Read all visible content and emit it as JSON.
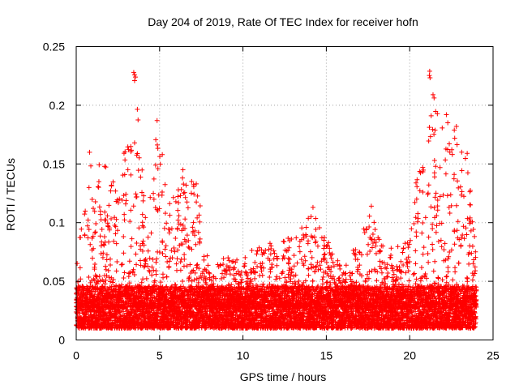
{
  "chart_data": {
    "type": "scatter",
    "title": "Day 204 of 2019, Rate Of TEC Index for receiver hofn",
    "xlabel": "GPS time / hours",
    "ylabel": "ROTI / TECUs",
    "xlim": [
      0,
      25
    ],
    "ylim": [
      0,
      0.25
    ],
    "xticks": [
      0,
      5,
      10,
      15,
      20,
      25
    ],
    "yticks": [
      0,
      0.05,
      0.1,
      0.15,
      0.2,
      0.25
    ],
    "xtick_labels": [
      "0",
      "5",
      "10",
      "15",
      "20",
      "25"
    ],
    "ytick_labels": [
      "0",
      "0.05",
      "0.1",
      "0.15",
      "0.2",
      "0.25"
    ],
    "grid": true,
    "marker": "+",
    "color": "#ff0000",
    "series": [
      {
        "name": "ROTI",
        "x_range": [
          0,
          24
        ],
        "interval_hours": 0.0083,
        "baseline_min": 0.01,
        "baseline_median": 0.028,
        "envelope": [
          {
            "x": 0,
            "y": 0.06
          },
          {
            "x": 0.8,
            "y": 0.16
          },
          {
            "x": 1.7,
            "y": 0.15
          },
          {
            "x": 2.6,
            "y": 0.13
          },
          {
            "x": 3.5,
            "y": 0.23
          },
          {
            "x": 4.2,
            "y": 0.1
          },
          {
            "x": 4.9,
            "y": 0.19
          },
          {
            "x": 5.5,
            "y": 0.12
          },
          {
            "x": 6.5,
            "y": 0.145
          },
          {
            "x": 7.3,
            "y": 0.135
          },
          {
            "x": 8,
            "y": 0.06
          },
          {
            "x": 9,
            "y": 0.075
          },
          {
            "x": 10,
            "y": 0.07
          },
          {
            "x": 10.8,
            "y": 0.08
          },
          {
            "x": 12.5,
            "y": 0.085
          },
          {
            "x": 13.8,
            "y": 0.1
          },
          {
            "x": 14.2,
            "y": 0.115
          },
          {
            "x": 14.6,
            "y": 0.1
          },
          {
            "x": 16,
            "y": 0.06
          },
          {
            "x": 17.7,
            "y": 0.115
          },
          {
            "x": 18.5,
            "y": 0.08
          },
          {
            "x": 19.5,
            "y": 0.08
          },
          {
            "x": 20,
            "y": 0.09
          },
          {
            "x": 21.2,
            "y": 0.23
          },
          {
            "x": 21.4,
            "y": 0.21
          },
          {
            "x": 22.2,
            "y": 0.19
          },
          {
            "x": 22.7,
            "y": 0.18
          },
          {
            "x": 23.5,
            "y": 0.16
          },
          {
            "x": 24,
            "y": 0.07
          }
        ],
        "outliers": [
          {
            "x": 3.45,
            "y": 0.228
          },
          {
            "x": 3.5,
            "y": 0.226
          },
          {
            "x": 3.55,
            "y": 0.224
          },
          {
            "x": 3.5,
            "y": 0.221
          },
          {
            "x": 4.85,
            "y": 0.187
          },
          {
            "x": 21.2,
            "y": 0.229
          },
          {
            "x": 21.4,
            "y": 0.209
          },
          {
            "x": 22.2,
            "y": 0.192
          },
          {
            "x": 22.8,
            "y": 0.182
          },
          {
            "x": 22.7,
            "y": 0.172
          },
          {
            "x": 23.45,
            "y": 0.159
          },
          {
            "x": 0.8,
            "y": 0.16
          },
          {
            "x": 1.7,
            "y": 0.148
          },
          {
            "x": 3.5,
            "y": 0.168
          },
          {
            "x": 4.9,
            "y": 0.146
          },
          {
            "x": 6.4,
            "y": 0.145
          },
          {
            "x": 7.2,
            "y": 0.133
          },
          {
            "x": 17.7,
            "y": 0.114
          },
          {
            "x": 14.2,
            "y": 0.113
          },
          {
            "x": 13.8,
            "y": 0.096
          }
        ]
      }
    ]
  }
}
